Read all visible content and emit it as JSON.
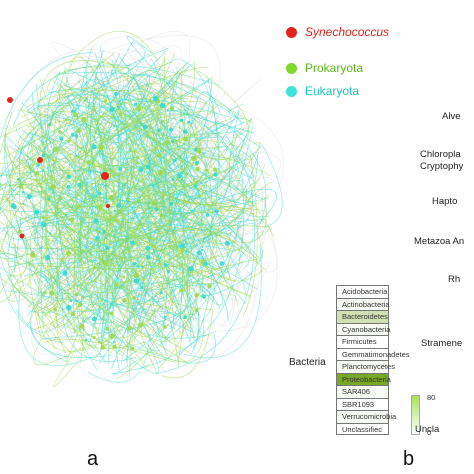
{
  "legend": {
    "items": [
      {
        "label": "Synechococcus",
        "color": "#e2241c",
        "italic": true
      },
      {
        "label": "Prokaryota",
        "color": "#7fd82a",
        "italic": false
      },
      {
        "label": "Eukaryota",
        "color": "#3fe3d6",
        "italic": false
      }
    ]
  },
  "bacteria": {
    "title": "Bacteria",
    "rows": [
      {
        "label": "Acidobacteria",
        "shade": 0
      },
      {
        "label": "Actinobacteria",
        "shade": 0.05
      },
      {
        "label": "Bacteroidetes",
        "shade": 0.35
      },
      {
        "label": "Cyanobacteria",
        "shade": 0.05
      },
      {
        "label": "Firmicutes",
        "shade": 0
      },
      {
        "label": "Gemmatimonadetes",
        "shade": 0
      },
      {
        "label": "Planctomycetes",
        "shade": 0.05
      },
      {
        "label": "Proteobacteria",
        "shade": 1
      },
      {
        "label": "SAR406",
        "shade": 0.05
      },
      {
        "label": "SBR1093",
        "shade": 0
      },
      {
        "label": "Verrucomicrobia",
        "shade": 0.05
      },
      {
        "label": "Unclassifiec",
        "shade": 0
      }
    ]
  },
  "colorbar": {
    "max": "80",
    "min": "0"
  },
  "eukaryota_labels": [
    "Alve",
    "Chloropla",
    "Cryptophy",
    "Hapto",
    "Metazoa An",
    "Rh",
    "Stramene",
    "Uncla"
  ],
  "panel_letters": {
    "a": "a",
    "b": "b"
  },
  "colors": {
    "edge_green": "#9fd84a",
    "edge_cyan": "#35d9d0",
    "edge_grey": "#d8d8d8"
  }
}
